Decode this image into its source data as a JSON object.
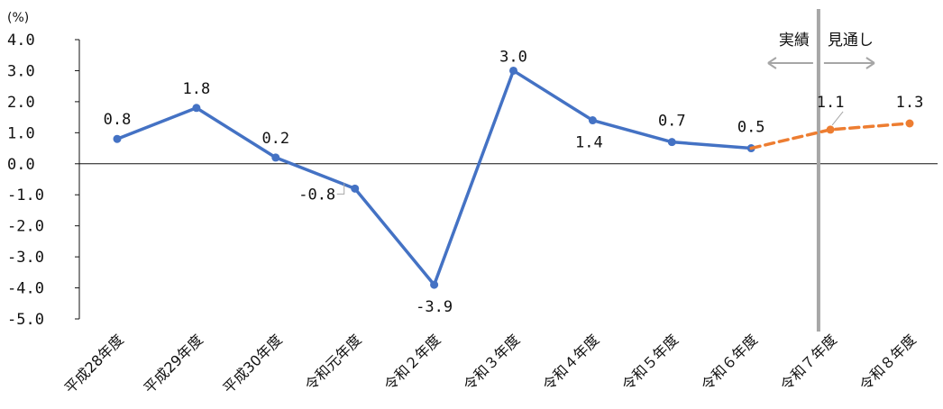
{
  "chart_data": {
    "type": "line",
    "unit_label": "(%)",
    "categories": [
      "平成28年度",
      "平成29年度",
      "平成30年度",
      "令和元年度",
      "令和２年度",
      "令和３年度",
      "令和４年度",
      "令和５年度",
      "令和６年度",
      "令和７年度",
      "令和８年度"
    ],
    "series": [
      {
        "values": [
          0.8,
          1.8,
          0.2,
          -0.8,
          -3.9,
          3.0,
          1.4,
          0.7,
          0.5,
          null,
          null
        ],
        "color": "#4472C4",
        "style": "solid"
      },
      {
        "values": [
          null,
          null,
          null,
          null,
          null,
          null,
          null,
          null,
          0.5,
          1.1,
          1.3
        ],
        "color": "#ED7D31",
        "style": "dashed"
      }
    ],
    "data_labels": [
      "0.8",
      "1.8",
      "0.2",
      "-0.8",
      "-3.9",
      "3.0",
      "1.4",
      "0.7",
      "0.5",
      "1.1",
      "1.3"
    ],
    "ylim": [
      -5.0,
      4.0
    ],
    "yticks": [
      "4.0",
      "3.0",
      "2.0",
      "1.0",
      "0.0",
      "-1.0",
      "-2.0",
      "-3.0",
      "-4.0",
      "-5.0"
    ],
    "annotations": {
      "actual_label": "実績",
      "forecast_label": "見通し"
    },
    "grid": false,
    "legend": "none"
  }
}
